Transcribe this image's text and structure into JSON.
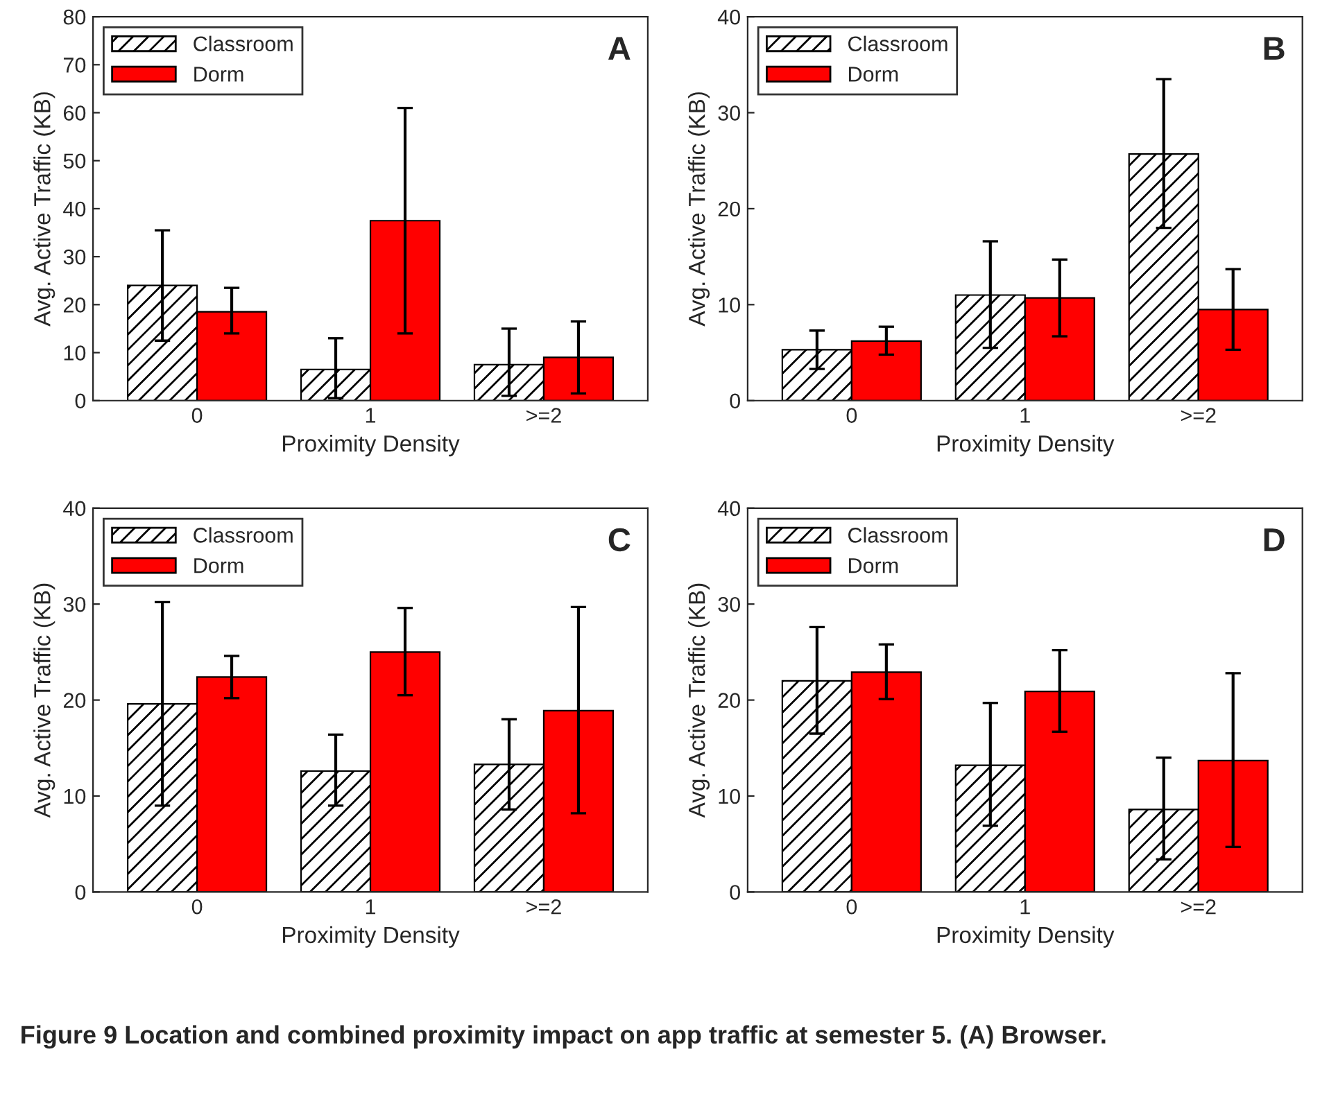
{
  "chart_data": [
    {
      "type": "bar",
      "xlabel": "Proximity Density",
      "ylabel": "Avg. Active Traffic (KB)",
      "categories": [
        "0",
        "1",
        ">=2"
      ],
      "ylim": [
        0,
        80
      ],
      "yticks": [
        0,
        10,
        20,
        30,
        40,
        50,
        60,
        70,
        80
      ],
      "legend": "top left",
      "grid": false,
      "annotations": [
        "A"
      ],
      "series": [
        {
          "name": "Classroom",
          "color": "#000000",
          "values": [
            24,
            6.5,
            7.5
          ],
          "errors": [
            [
              12.5,
              35.5
            ],
            [
              0.5,
              13
            ],
            [
              1,
              15
            ]
          ]
        },
        {
          "name": "Dorm",
          "color": "#ff0000",
          "values": [
            18.5,
            37.5,
            9
          ],
          "errors": [
            [
              14,
              23.5
            ],
            [
              14,
              61
            ],
            [
              1.5,
              16.5
            ]
          ]
        }
      ]
    },
    {
      "type": "bar",
      "xlabel": "Proximity Density",
      "ylabel": "Avg. Active Traffic (KB)",
      "categories": [
        "0",
        "1",
        ">=2"
      ],
      "ylim": [
        0,
        40
      ],
      "yticks": [
        0,
        10,
        20,
        30,
        40
      ],
      "legend": "top left",
      "grid": false,
      "annotations": [
        "B"
      ],
      "series": [
        {
          "name": "Classroom",
          "color": "#000000",
          "values": [
            5.3,
            11,
            25.7
          ],
          "errors": [
            [
              3.3,
              7.3
            ],
            [
              5.5,
              16.6
            ],
            [
              18,
              33.5
            ]
          ]
        },
        {
          "name": "Dorm",
          "color": "#ff0000",
          "values": [
            6.2,
            10.7,
            9.5
          ],
          "errors": [
            [
              4.8,
              7.7
            ],
            [
              6.7,
              14.7
            ],
            [
              5.3,
              13.7
            ]
          ]
        }
      ]
    },
    {
      "type": "bar",
      "xlabel": "Proximity Density",
      "ylabel": "Avg. Active Traffic (KB)",
      "categories": [
        "0",
        "1",
        ">=2"
      ],
      "ylim": [
        0,
        40
      ],
      "yticks": [
        0,
        10,
        20,
        30,
        40
      ],
      "legend": "top left",
      "grid": false,
      "annotations": [
        "C"
      ],
      "series": [
        {
          "name": "Classroom",
          "color": "#000000",
          "values": [
            19.6,
            12.6,
            13.3
          ],
          "errors": [
            [
              9,
              30.2
            ],
            [
              9,
              16.4
            ],
            [
              8.6,
              18
            ]
          ]
        },
        {
          "name": "Dorm",
          "color": "#ff0000",
          "values": [
            22.4,
            25,
            18.9
          ],
          "errors": [
            [
              20.2,
              24.6
            ],
            [
              20.5,
              29.6
            ],
            [
              8.2,
              29.7
            ]
          ]
        }
      ]
    },
    {
      "type": "bar",
      "xlabel": "Proximity Density",
      "ylabel": "Avg. Active Traffic (KB)",
      "categories": [
        "0",
        "1",
        ">=2"
      ],
      "ylim": [
        0,
        40
      ],
      "yticks": [
        0,
        10,
        20,
        30,
        40
      ],
      "legend": "top left",
      "grid": false,
      "annotations": [
        "D",
        "Figure 9 Location and combined proximity impact on app traffic at semester 5. (A) Browser."
      ],
      "series": [
        {
          "name": "Classroom",
          "color": "#000000",
          "values": [
            22,
            13.2,
            8.6
          ],
          "errors": [
            [
              16.5,
              27.6
            ],
            [
              6.9,
              19.7
            ],
            [
              3.4,
              14
            ]
          ]
        },
        {
          "name": "Dorm",
          "color": "#ff0000",
          "values": [
            22.9,
            20.9,
            13.7
          ],
          "errors": [
            [
              20.1,
              25.8
            ],
            [
              16.7,
              25.2
            ],
            [
              4.7,
              22.8
            ]
          ]
        }
      ]
    }
  ]
}
